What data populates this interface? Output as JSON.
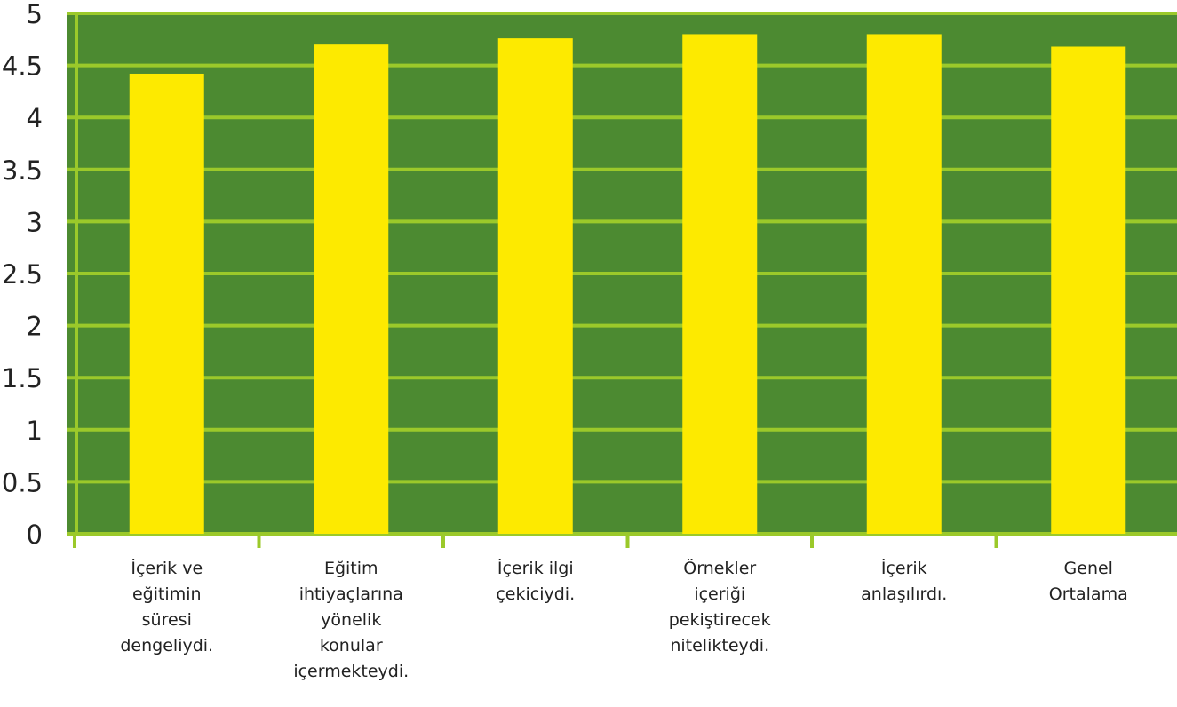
{
  "chart_data": {
    "type": "bar",
    "categories": [
      [
        "İçerik ve",
        "eğitimin",
        "süresi",
        "dengeliydi."
      ],
      [
        "Eğitim",
        "ihtiyaçlarına",
        "yönelik",
        "konular",
        "içermekteydi."
      ],
      [
        "İçerik ilgi",
        "çekiciydi."
      ],
      [
        "Örnekler",
        "içeriği",
        "pekiştirecek",
        "nitelikteydi."
      ],
      [
        "İçerik",
        "anlaşılırdı."
      ],
      [
        "Genel",
        "Ortalama"
      ]
    ],
    "values": [
      4.42,
      4.7,
      4.76,
      4.8,
      4.8,
      4.68
    ],
    "yticks": [
      "0",
      "0.5",
      "1",
      "1.5",
      "2",
      "2.5",
      "3",
      "3.5",
      "4",
      "4.5",
      "5"
    ],
    "ylim": [
      0,
      5
    ],
    "grid": true,
    "colors": {
      "plot_background": "#4c8a31",
      "grid": "#9bc92a",
      "bar": "#fdea00",
      "text": "#222222"
    }
  }
}
